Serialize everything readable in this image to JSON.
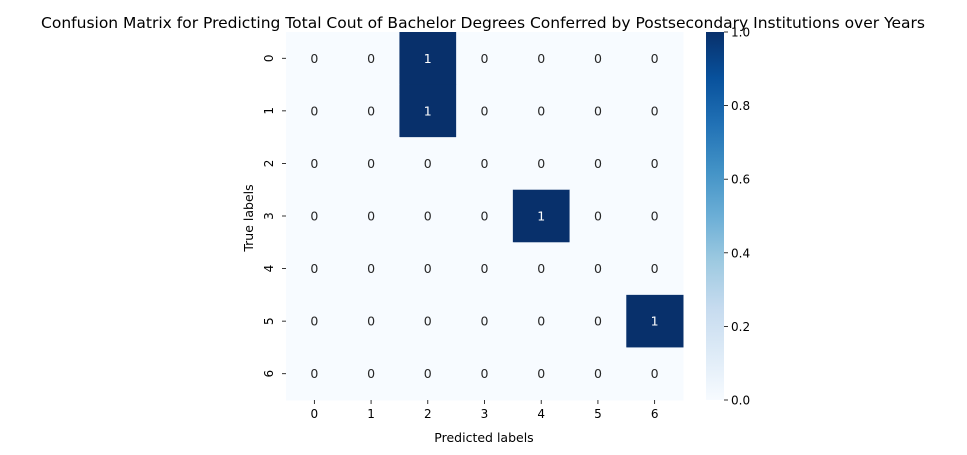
{
  "chart_data": {
    "type": "heatmap",
    "title": "Confusion Matrix for Predicting Total Cout of Bachelor Degrees Conferred by Postsecondary Institutions over Years",
    "xlabel": "Predicted labels",
    "ylabel": "True labels",
    "x_categories": [
      "0",
      "1",
      "2",
      "3",
      "4",
      "5",
      "6"
    ],
    "y_categories": [
      "0",
      "1",
      "2",
      "3",
      "4",
      "5",
      "6"
    ],
    "values": [
      [
        0,
        0,
        1,
        0,
        0,
        0,
        0
      ],
      [
        0,
        0,
        1,
        0,
        0,
        0,
        0
      ],
      [
        0,
        0,
        0,
        0,
        0,
        0,
        0
      ],
      [
        0,
        0,
        0,
        0,
        1,
        0,
        0
      ],
      [
        0,
        0,
        0,
        0,
        0,
        0,
        0
      ],
      [
        0,
        0,
        0,
        0,
        0,
        0,
        1
      ],
      [
        0,
        0,
        0,
        0,
        0,
        0,
        0
      ]
    ],
    "colormap": "Blues",
    "color_low": "#f7fbff",
    "color_high": "#08306b",
    "vmin": 0,
    "vmax": 1,
    "colorbar_ticks": [
      "0.0",
      "0.2",
      "0.4",
      "0.6",
      "0.8",
      "1.0"
    ],
    "colorbar_tick_values": [
      0,
      0.2,
      0.4,
      0.6,
      0.8,
      1.0
    ],
    "annotations": true,
    "grid": false
  }
}
